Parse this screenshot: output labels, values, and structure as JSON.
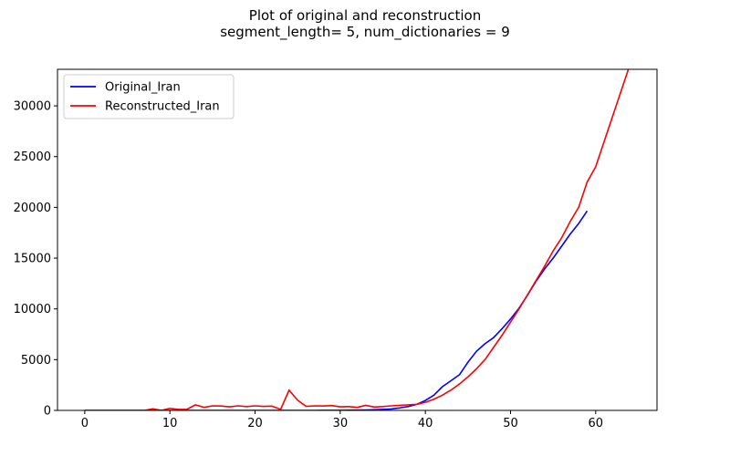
{
  "chart_data": {
    "type": "line",
    "title": "Plot of original and reconstruction",
    "subtitle": "segment_length= 5, num_dictionaries = 9",
    "xlabel": "",
    "ylabel": "",
    "xlim": [
      -3.2,
      67.2
    ],
    "ylim": [
      0,
      33600
    ],
    "xticks": [
      0,
      10,
      20,
      30,
      40,
      50,
      60
    ],
    "yticks": [
      0,
      5000,
      10000,
      15000,
      20000,
      25000,
      30000
    ],
    "grid": false,
    "legend_position": "upper-left",
    "series": [
      {
        "name": "Original_Iran",
        "color": "#0000ff",
        "x": [
          0,
          1,
          2,
          3,
          4,
          5,
          6,
          7,
          8,
          9,
          10,
          11,
          12,
          13,
          14,
          15,
          16,
          17,
          18,
          19,
          20,
          21,
          22,
          23,
          24,
          25,
          26,
          27,
          28,
          29,
          30,
          31,
          32,
          33,
          34,
          35,
          36,
          37,
          38,
          39,
          40,
          41,
          42,
          43,
          44,
          45,
          46,
          47,
          48,
          49,
          50,
          51,
          52,
          53,
          54,
          55,
          56,
          57,
          58,
          59
        ],
        "y": [
          0,
          0,
          0,
          0,
          0,
          0,
          0,
          0,
          0,
          0,
          0,
          0,
          0,
          0,
          0,
          0,
          0,
          0,
          0,
          0,
          0,
          0,
          0,
          0,
          0,
          0,
          0,
          0,
          2,
          2,
          5,
          18,
          28,
          43,
          61,
          95,
          139,
          245,
          388,
          593,
          978,
          1501,
          2336,
          2922,
          3513,
          4747,
          5823,
          6566,
          7161,
          8042,
          9000,
          10075,
          11364,
          12729,
          13938,
          14991,
          16169,
          17361,
          18407,
          19644
        ]
      },
      {
        "name": "Reconstructed_Iran",
        "color": "#ff0000",
        "x": [
          0,
          1,
          2,
          3,
          4,
          5,
          6,
          7,
          8,
          9,
          10,
          11,
          12,
          13,
          14,
          15,
          16,
          17,
          18,
          19,
          20,
          21,
          22,
          23,
          24,
          25,
          26,
          27,
          28,
          29,
          30,
          31,
          32,
          33,
          34,
          35,
          36,
          37,
          38,
          39,
          40,
          41,
          42,
          43,
          44,
          45,
          46,
          47,
          48,
          49,
          50,
          51,
          52,
          53,
          54,
          55,
          56,
          57,
          58,
          59,
          60,
          61,
          62,
          63,
          64
        ],
        "y": [
          0,
          0,
          0,
          0,
          0,
          0,
          0,
          0,
          150,
          0,
          200,
          100,
          100,
          550,
          300,
          450,
          430,
          350,
          450,
          380,
          450,
          400,
          420,
          100,
          2000,
          1000,
          400,
          450,
          430,
          480,
          350,
          380,
          300,
          500,
          330,
          380,
          450,
          500,
          550,
          600,
          800,
          1100,
          1500,
          2000,
          2600,
          3300,
          4100,
          5000,
          6200,
          7400,
          8700,
          10000,
          11400,
          12800,
          14200,
          15700,
          17000,
          18600,
          20000,
          22500,
          24000,
          26500,
          29000,
          31500,
          34000
        ]
      }
    ]
  }
}
